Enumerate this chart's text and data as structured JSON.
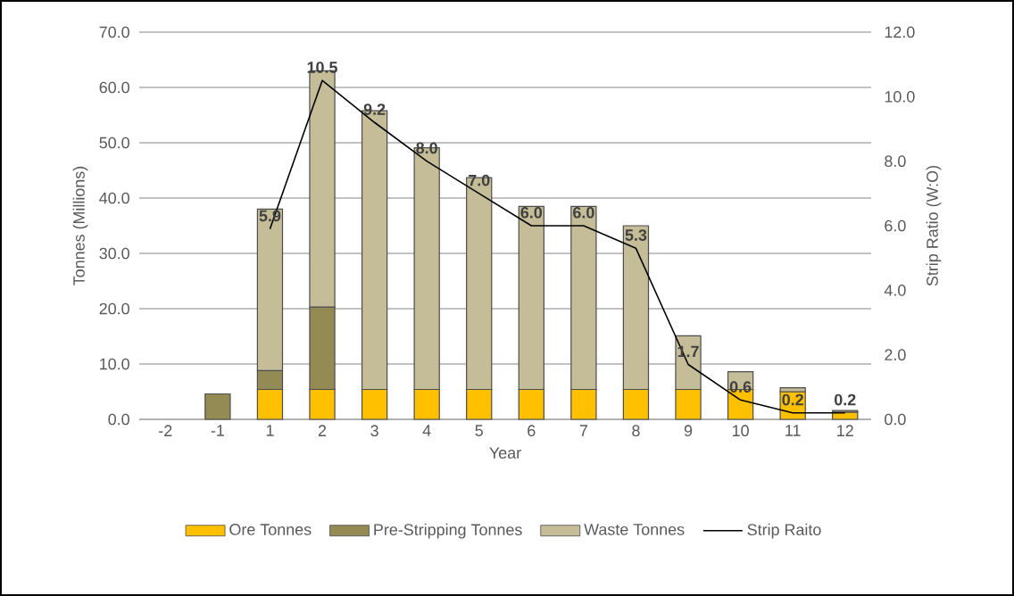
{
  "chart_data": {
    "type": "bar",
    "stacked": true,
    "xlabel": "Year",
    "ylabel": "Tonnes (Millions)",
    "y2label": "Strip Ratio (W:O)",
    "categories": [
      "-2",
      "-1",
      "1",
      "2",
      "3",
      "4",
      "5",
      "6",
      "7",
      "8",
      "9",
      "10",
      "11",
      "12"
    ],
    "series": [
      {
        "name": "Ore Tonnes",
        "color": "#ffc000",
        "values": [
          null,
          null,
          5.4,
          5.4,
          5.4,
          5.4,
          5.4,
          5.4,
          5.4,
          5.4,
          5.4,
          5.4,
          5.0,
          1.3
        ]
      },
      {
        "name": "Pre-Stripping Tonnes",
        "color": "#948a54",
        "values": [
          null,
          4.6,
          3.4,
          14.9,
          null,
          null,
          null,
          null,
          null,
          null,
          null,
          null,
          null,
          null
        ]
      },
      {
        "name": "Waste Tonnes",
        "color": "#c4bd97",
        "values": [
          null,
          null,
          29.2,
          42.7,
          50.4,
          43.7,
          38.3,
          33.1,
          33.1,
          29.6,
          9.7,
          3.2,
          0.7,
          0.3
        ]
      },
      {
        "name": "Strip Raito",
        "type": "line",
        "axis": "y2",
        "color": "#000000",
        "values": [
          null,
          null,
          5.9,
          10.5,
          9.2,
          8.0,
          7.0,
          6.0,
          6.0,
          5.3,
          1.7,
          0.6,
          0.2,
          0.2
        ],
        "value_labels": [
          null,
          null,
          "5.9",
          "10.5",
          "9.2",
          "8.0",
          "7.0",
          "6.0",
          "6.0",
          "5.3",
          "1.7",
          "0.6",
          "0.2",
          "0.2"
        ]
      }
    ],
    "ylim": [
      0,
      70
    ],
    "yticks": [
      {
        "value": 0,
        "label": "0.0"
      },
      {
        "value": 10,
        "label": "10.0"
      },
      {
        "value": 20,
        "label": "20.0"
      },
      {
        "value": 30,
        "label": "30.0"
      },
      {
        "value": 40,
        "label": "40.0"
      },
      {
        "value": 50,
        "label": "50.0"
      },
      {
        "value": 60,
        "label": "60.0"
      },
      {
        "value": 70,
        "label": "70.0"
      }
    ],
    "y2lim": [
      0,
      12
    ],
    "y2ticks": [
      {
        "value": 0,
        "label": "0.0"
      },
      {
        "value": 2,
        "label": "2.0"
      },
      {
        "value": 4,
        "label": "4.0"
      },
      {
        "value": 6,
        "label": "6.0"
      },
      {
        "value": 8,
        "label": "8.0"
      },
      {
        "value": 10,
        "label": "10.0"
      },
      {
        "value": 12,
        "label": "12.0"
      }
    ],
    "grid": "y",
    "legend": "bottom"
  }
}
